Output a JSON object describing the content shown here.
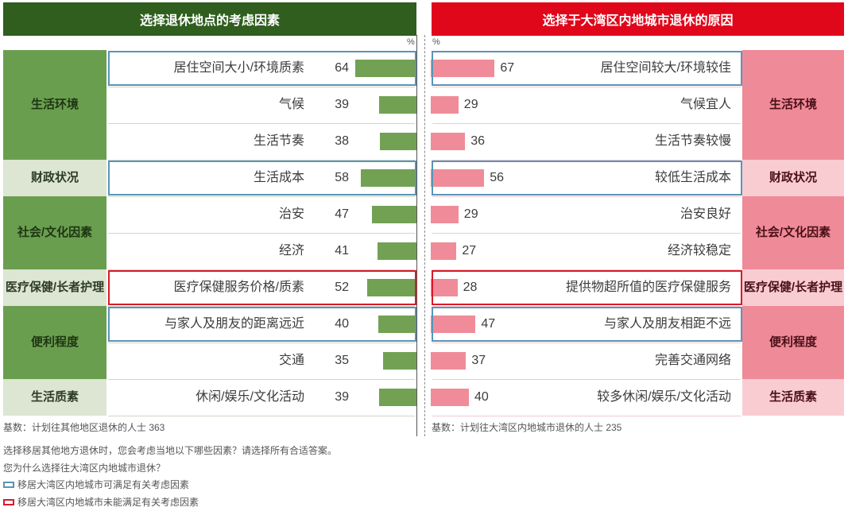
{
  "left_title": "选择退休地点的考虑因素",
  "right_title": "选择于大湾区内地城市退休的原因",
  "unit": "%",
  "colors": {
    "left_dark": "#2f5e1e",
    "left_bar": "#72a154",
    "right_red": "#e0071b",
    "right_bar": "#f08c99",
    "met_outline": "#5a95b8",
    "unmet_outline": "#d81a2a"
  },
  "chart_data": {
    "type": "bar",
    "groups": [
      {
        "left": "生活环境",
        "right": "生活环境",
        "items": [
          {
            "left_label": "居住空间大小/环境质素",
            "left_value": 64,
            "right_label": "居住空间较大/环境较佳",
            "right_value": 67
          },
          {
            "left_label": "气候",
            "left_value": 39,
            "right_label": "气候宜人",
            "right_value": 29
          },
          {
            "left_label": "生活节奏",
            "left_value": 38,
            "right_label": "生活节奏较慢",
            "right_value": 36
          }
        ]
      },
      {
        "left": "财政状况",
        "right": "财政状况",
        "items": [
          {
            "left_label": "生活成本",
            "left_value": 58,
            "right_label": "较低生活成本",
            "right_value": 56
          }
        ]
      },
      {
        "left": "社会/\n文化因素",
        "right": "社会/\n文化因素",
        "items": [
          {
            "left_label": "治安",
            "left_value": 47,
            "right_label": "治安良好",
            "right_value": 29
          },
          {
            "left_label": "经济",
            "left_value": 41,
            "right_label": "经济较稳定",
            "right_value": 27
          }
        ]
      },
      {
        "left": "医疗保健/\n长者护理",
        "right": "医疗保健/\n长者护理",
        "items": [
          {
            "left_label": "医疗保健服务价格/质素",
            "left_value": 52,
            "right_label": "提供物超所值的医疗保健服务",
            "right_value": 28
          }
        ]
      },
      {
        "left": "便利程度",
        "right": "便利程度",
        "items": [
          {
            "left_label": "与家人及朋友的距离远近",
            "left_value": 40,
            "right_label": "与家人及朋友相距不远",
            "right_value": 47
          },
          {
            "left_label": "交通",
            "left_value": 35,
            "right_label": "完善交通网络",
            "right_value": 37
          }
        ]
      },
      {
        "left": "生活质素",
        "right": "生活质素",
        "items": [
          {
            "left_label": "休闲/娱乐/文化活动",
            "left_value": 39,
            "right_label": "较多休闲/娱乐/文化活动",
            "right_value": 40
          }
        ]
      }
    ],
    "highlighted_met": [
      0,
      3,
      7
    ],
    "highlighted_unmet": [
      6
    ]
  },
  "base_left": "基数：计划往其他地区退休的人士 363",
  "base_right": "基数：计划往大湾区内地城市退休的人士 235",
  "notes": [
    "选择移居其他地方退休时，您会考虑当地以下哪些因素？请选择所有合适答案。",
    "您为什么选择往大湾区内地城市退休？"
  ],
  "legend": {
    "met": "移居大湾区内地城市可满足有关考虑因素",
    "unmet": "移居大湾区内地城市未能满足有关考虑因素"
  }
}
